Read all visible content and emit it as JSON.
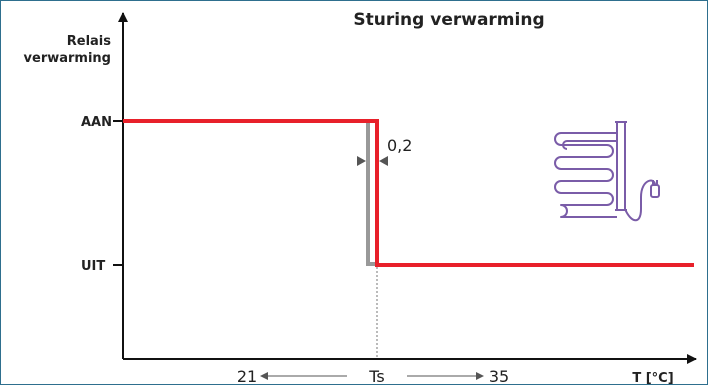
{
  "title": "Sturing verwarming",
  "y_axis_label_line1": "Relais",
  "y_axis_label_line2": "verwarming",
  "x_axis_label": "T [°C]",
  "level_on": "AAN",
  "level_off": "UIT",
  "hysteresis_label": "0,2",
  "range_min": "21",
  "setpoint_label": "Ts",
  "range_max": "35",
  "colors": {
    "heating_curve": "#e8202a",
    "return_curve": "#999999",
    "icon": "#7a5ca8",
    "axis": "#111111",
    "frame": "#2e6f8e"
  },
  "icons": [
    "radiator-icon",
    "plug-icon"
  ]
}
